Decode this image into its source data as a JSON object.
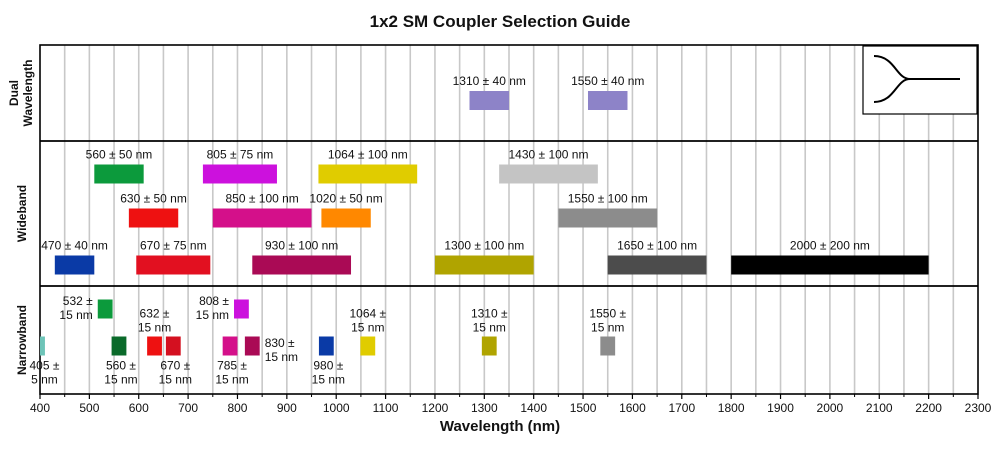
{
  "chart_data": {
    "type": "range-bar",
    "title": "1x2 SM Coupler Selection Guide",
    "xlabel": "Wavelength (nm)",
    "xlim": [
      400,
      2300
    ],
    "xticks": [
      400,
      500,
      600,
      700,
      800,
      900,
      1000,
      1100,
      1200,
      1300,
      1400,
      1500,
      1600,
      1700,
      1800,
      1900,
      2000,
      2100,
      2200,
      2300
    ],
    "minor_grid_step": 50,
    "grid": true,
    "panels": [
      {
        "name": "Dual\nWavelength",
        "bars": [
          {
            "label": "1310 ± 40 nm",
            "center": 1310,
            "half_width": 40,
            "color": "#8d83c8"
          },
          {
            "label": "1550 ± 40 nm",
            "center": 1550,
            "half_width": 40,
            "color": "#8d83c8"
          }
        ]
      },
      {
        "name": "Wideband",
        "bars": [
          {
            "label": "560 ± 50 nm",
            "center": 560,
            "half_width": 50,
            "color": "#0c9a3c",
            "row": 0
          },
          {
            "label": "805 ± 75 nm",
            "center": 805,
            "half_width": 75,
            "color": "#cc11dd",
            "row": 0
          },
          {
            "label": "1064 ± 100 nm",
            "center": 1064,
            "half_width": 100,
            "color": "#e0cc00",
            "row": 0
          },
          {
            "label": "1430 ± 100 nm",
            "center": 1430,
            "half_width": 100,
            "color": "#c4c4c4",
            "row": 0
          },
          {
            "label": "630 ± 50 nm",
            "center": 630,
            "half_width": 50,
            "color": "#ee1111",
            "row": 1
          },
          {
            "label": "850 ± 100 nm",
            "center": 850,
            "half_width": 100,
            "color": "#d4108a",
            "row": 1
          },
          {
            "label": "1020 ± 50 nm",
            "center": 1020,
            "half_width": 50,
            "color": "#ff8800",
            "row": 1
          },
          {
            "label": "1550 ± 100 nm",
            "center": 1550,
            "half_width": 100,
            "color": "#8c8c8c",
            "row": 1
          },
          {
            "label": "470 ± 40 nm",
            "center": 470,
            "half_width": 40,
            "color": "#0a3aa6",
            "row": 2
          },
          {
            "label": "670 ± 75 nm",
            "center": 670,
            "half_width": 75,
            "color": "#e21020",
            "row": 2
          },
          {
            "label": "930 ± 100 nm",
            "center": 930,
            "half_width": 100,
            "color": "#aa0a55",
            "row": 2
          },
          {
            "label": "1300 ± 100 nm",
            "center": 1300,
            "half_width": 100,
            "color": "#b0a400",
            "row": 2
          },
          {
            "label": "1650 ± 100 nm",
            "center": 1650,
            "half_width": 100,
            "color": "#4c4c4c",
            "row": 2
          },
          {
            "label": "2000 ± 200 nm",
            "center": 2000,
            "half_width": 200,
            "color": "#000000",
            "row": 2
          }
        ]
      },
      {
        "name": "Narrowband",
        "bars": [
          {
            "label": "405 ±\n5 nm",
            "center": 405,
            "half_width": 5,
            "color": "#6ec4b8",
            "row": 1,
            "label_pos": "below"
          },
          {
            "label": "532 ±\n15 nm",
            "center": 532,
            "half_width": 15,
            "color": "#0c9a3c",
            "row": 0,
            "label_pos": "left"
          },
          {
            "label": "560 ±\n15 nm",
            "center": 560,
            "half_width": 15,
            "color": "#0a6a2a",
            "row": 1,
            "label_pos": "below"
          },
          {
            "label": "632 ±\n15 nm",
            "center": 632,
            "half_width": 15,
            "color": "#ee1111",
            "row": 1,
            "label_pos": "above"
          },
          {
            "label": "670 ±\n15 nm",
            "center": 670,
            "half_width": 15,
            "color": "#d41020",
            "row": 1,
            "label_pos": "below"
          },
          {
            "label": "785 ±\n15 nm",
            "center": 785,
            "half_width": 15,
            "color": "#d4108a",
            "row": 1,
            "label_pos": "below"
          },
          {
            "label": "808 ±\n15 nm",
            "center": 808,
            "half_width": 15,
            "color": "#cc11dd",
            "row": 0,
            "label_pos": "left"
          },
          {
            "label": "830 ±\n15 nm",
            "center": 830,
            "half_width": 15,
            "color": "#aa0a55",
            "row": 1,
            "label_pos": "right"
          },
          {
            "label": "980 ±\n15 nm",
            "center": 980,
            "half_width": 15,
            "color": "#0a3aa6",
            "row": 1,
            "label_pos": "below"
          },
          {
            "label": "1064 ±\n15 nm",
            "center": 1064,
            "half_width": 15,
            "color": "#e0cc00",
            "row": 1,
            "label_pos": "above"
          },
          {
            "label": "1310 ±\n15 nm",
            "center": 1310,
            "half_width": 15,
            "color": "#b0a400",
            "row": 1,
            "label_pos": "above"
          },
          {
            "label": "1550 ±\n15 nm",
            "center": 1550,
            "half_width": 15,
            "color": "#8c8c8c",
            "row": 1,
            "label_pos": "above"
          }
        ]
      }
    ],
    "inset": {
      "content": "1x2 coupler schematic",
      "icon": "coupler-schematic-icon"
    }
  }
}
